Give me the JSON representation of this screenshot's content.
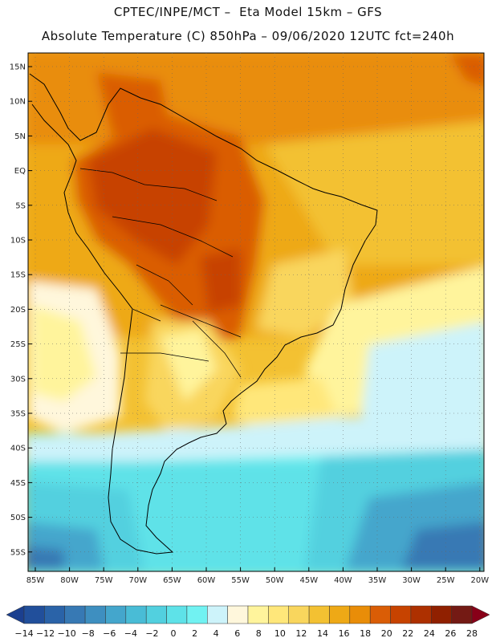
{
  "header": {
    "line1": "CPTEC/INPE/MCT –  Eta Model 15km – GFS",
    "line2": "Absolute Temperature (C) 850hPa – 09/06/2020 12UTC fct=240h"
  },
  "axes": {
    "lat_labels": [
      "15N",
      "10N",
      "5N",
      "EQ",
      "5S",
      "10S",
      "15S",
      "20S",
      "25S",
      "30S",
      "35S",
      "40S",
      "45S",
      "50S",
      "55S"
    ],
    "lon_labels": [
      "85W",
      "80W",
      "75W",
      "70W",
      "65W",
      "60W",
      "55W",
      "50W",
      "45W",
      "40W",
      "35W",
      "30W",
      "25W",
      "20W"
    ]
  },
  "colorbar": {
    "labels": [
      "-14",
      "-12",
      "-10",
      "-8",
      "-6",
      "-4",
      "-2",
      "0",
      "2",
      "4",
      "6",
      "8",
      "10",
      "12",
      "14",
      "16",
      "18",
      "20",
      "22",
      "24",
      "26",
      "28"
    ],
    "colors": [
      "#1b3f8f",
      "#214f9b",
      "#2a63a8",
      "#3779b4",
      "#3e8fc0",
      "#44a6cc",
      "#49bcd6",
      "#52d0df",
      "#5ee2e8",
      "#71f2f2",
      "#cdf3fa",
      "#fff7dc",
      "#fff49c",
      "#ffe77a",
      "#f9d65d",
      "#f3c132",
      "#eea916",
      "#e98d08",
      "#da5d06",
      "#c74300",
      "#ad3000",
      "#902000",
      "#741a14",
      "#880018"
    ]
  }
}
